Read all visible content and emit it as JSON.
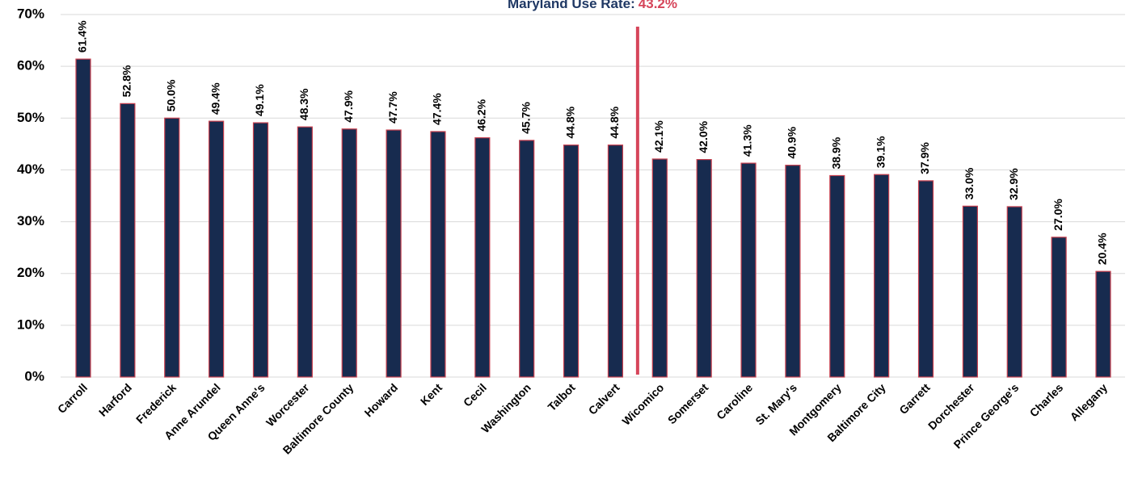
{
  "chart_data": {
    "type": "bar",
    "annotation": {
      "text": "Maryland Use Rate:",
      "value": 43.2,
      "value_label": "43.2%"
    },
    "categories": [
      "Carroll",
      "Harford",
      "Frederick",
      "Anne Arundel",
      "Queen Anne's",
      "Worcester",
      "Baltimore County",
      "Howard",
      "Kent",
      "Cecil",
      "Washington",
      "Talbot",
      "Calvert",
      "Wicomico",
      "Somerset",
      "Caroline",
      "St. Mary's",
      "Montgomery",
      "Baltimore City",
      "Garrett",
      "Dorchester",
      "Prince George's",
      "Charles",
      "Allegany"
    ],
    "values": [
      61.4,
      52.8,
      50.0,
      49.4,
      49.1,
      48.3,
      47.9,
      47.7,
      47.4,
      46.2,
      45.7,
      44.8,
      44.8,
      42.1,
      42.0,
      41.3,
      40.9,
      38.9,
      39.1,
      37.9,
      33.0,
      32.9,
      27.0,
      20.4
    ],
    "value_labels": [
      "61.4%",
      "52.8%",
      "50.0%",
      "49.4%",
      "49.1%",
      "48.3%",
      "47.9%",
      "47.7%",
      "47.4%",
      "46.2%",
      "45.7%",
      "44.8%",
      "44.8%",
      "42.1%",
      "42.0%",
      "41.3%",
      "40.9%",
      "38.9%",
      "39.1%",
      "37.9%",
      "33.0%",
      "32.9%",
      "27.0%",
      "20.4%"
    ],
    "color": "#172b4f",
    "edge_color": "#c8404f",
    "annotation_color": "#d6455a",
    "ylim": [
      0,
      70
    ],
    "yticks": [
      {
        "value": 0,
        "label": "0%"
      },
      {
        "value": 10,
        "label": "10%"
      },
      {
        "value": 20,
        "label": "20%"
      },
      {
        "value": 30,
        "label": "30%"
      },
      {
        "value": 40,
        "label": "40%"
      },
      {
        "value": 50,
        "label": "50%"
      },
      {
        "value": 60,
        "label": "60%"
      },
      {
        "value": 70,
        "label": "70%"
      }
    ],
    "grid": true
  }
}
